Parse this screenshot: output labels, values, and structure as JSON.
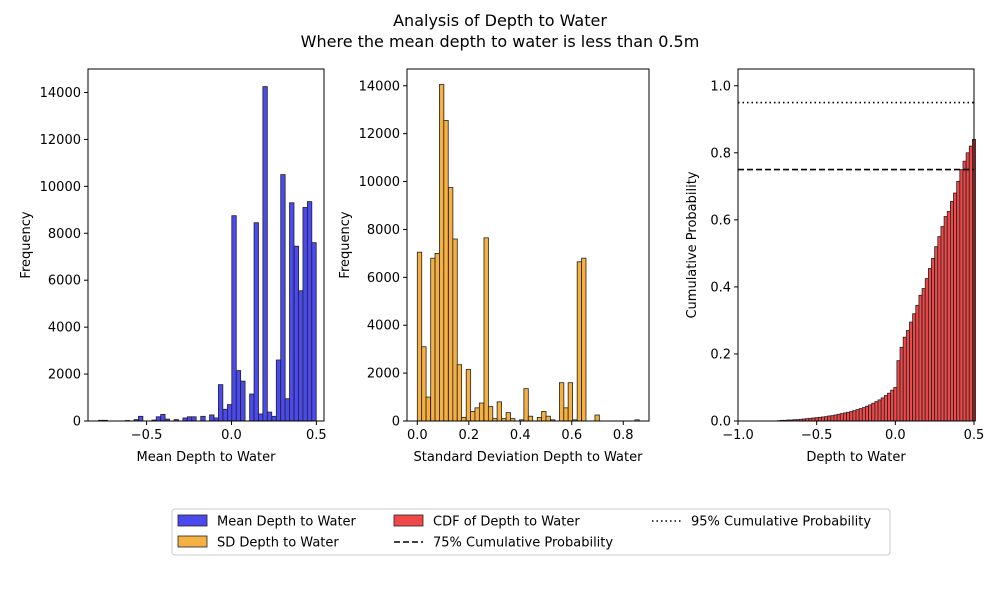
{
  "title": "Analysis of Depth to Water",
  "subtitle": "Where the mean depth to water is less than 0.5m",
  "colors": {
    "mean": "#4a4af0",
    "sd": "#f5b041",
    "cdf": "#f04848",
    "edge": "#222222"
  },
  "chart_data": [
    {
      "type": "bar",
      "name": "Mean Depth to Water histogram",
      "xlabel": "Mean Depth to Water",
      "ylabel": "Frequency",
      "xlim": [
        -0.845,
        0.545
      ],
      "ylim": [
        0,
        15000
      ],
      "xticks": [
        -0.5,
        0.0,
        0.5
      ],
      "xtick_labels": [
        "−0.5",
        "0.0",
        "0.5"
      ],
      "yticks": [
        0,
        2000,
        4000,
        6000,
        8000,
        10000,
        12000,
        14000
      ],
      "ytick_labels": [
        "0",
        "2000",
        "4000",
        "6000",
        "8000",
        "10000",
        "12000",
        "14000"
      ],
      "bin_width": 0.0262,
      "bins": [
        [
          -0.783,
          30
        ],
        [
          -0.757,
          30
        ],
        [
          -0.626,
          20
        ],
        [
          -0.574,
          60
        ],
        [
          -0.548,
          200
        ],
        [
          -0.469,
          40
        ],
        [
          -0.443,
          180
        ],
        [
          -0.417,
          280
        ],
        [
          -0.391,
          80
        ],
        [
          -0.338,
          60
        ],
        [
          -0.286,
          130
        ],
        [
          -0.26,
          180
        ],
        [
          -0.234,
          180
        ],
        [
          -0.181,
          200
        ],
        [
          -0.129,
          260
        ],
        [
          -0.103,
          130
        ],
        [
          -0.077,
          1550
        ],
        [
          -0.05,
          500
        ],
        [
          -0.024,
          700
        ],
        [
          0.002,
          8750
        ],
        [
          0.028,
          2150
        ],
        [
          0.054,
          1700
        ],
        [
          0.107,
          1150
        ],
        [
          0.133,
          8450
        ],
        [
          0.159,
          300
        ],
        [
          0.185,
          14250
        ],
        [
          0.211,
          380
        ],
        [
          0.238,
          200
        ],
        [
          0.264,
          2600
        ],
        [
          0.29,
          10500
        ],
        [
          0.316,
          950
        ],
        [
          0.342,
          9300
        ],
        [
          0.369,
          7450
        ],
        [
          0.395,
          5550
        ],
        [
          0.421,
          9100
        ],
        [
          0.447,
          9350
        ],
        [
          0.473,
          7600
        ]
      ],
      "series": [
        {
          "name": "Mean Depth to Water"
        }
      ]
    },
    {
      "type": "bar",
      "name": "SD Depth to Water histogram",
      "xlabel": "Standard Deviation Depth to Water",
      "ylabel": "Frequency",
      "xlim": [
        -0.04,
        0.9
      ],
      "ylim": [
        0,
        14700
      ],
      "xticks": [
        0.0,
        0.2,
        0.4,
        0.6,
        0.8
      ],
      "xtick_labels": [
        "0.0",
        "0.2",
        "0.4",
        "0.6",
        "0.8"
      ],
      "yticks": [
        0,
        2000,
        4000,
        6000,
        8000,
        10000,
        12000,
        14000
      ],
      "ytick_labels": [
        "0",
        "2000",
        "4000",
        "6000",
        "8000",
        "10000",
        "12000",
        "14000"
      ],
      "bin_width": 0.0172,
      "bins": [
        [
          0.0,
          7050
        ],
        [
          0.017,
          3100
        ],
        [
          0.034,
          1000
        ],
        [
          0.052,
          6800
        ],
        [
          0.069,
          7000
        ],
        [
          0.086,
          14050
        ],
        [
          0.103,
          12550
        ],
        [
          0.121,
          9750
        ],
        [
          0.138,
          7600
        ],
        [
          0.155,
          2350
        ],
        [
          0.172,
          150
        ],
        [
          0.19,
          2150
        ],
        [
          0.207,
          400
        ],
        [
          0.224,
          550
        ],
        [
          0.241,
          750
        ],
        [
          0.259,
          7650
        ],
        [
          0.276,
          600
        ],
        [
          0.293,
          100
        ],
        [
          0.31,
          800
        ],
        [
          0.328,
          100
        ],
        [
          0.345,
          350
        ],
        [
          0.362,
          100
        ],
        [
          0.397,
          50
        ],
        [
          0.414,
          1350
        ],
        [
          0.431,
          200
        ],
        [
          0.466,
          150
        ],
        [
          0.483,
          400
        ],
        [
          0.5,
          200
        ],
        [
          0.517,
          50
        ],
        [
          0.552,
          1600
        ],
        [
          0.569,
          550
        ],
        [
          0.586,
          1600
        ],
        [
          0.603,
          50
        ],
        [
          0.621,
          6650
        ],
        [
          0.638,
          6800
        ],
        [
          0.69,
          250
        ],
        [
          0.845,
          50
        ]
      ],
      "series": [
        {
          "name": "SD Depth to Water"
        }
      ]
    },
    {
      "type": "bar",
      "name": "CDF of Depth to Water",
      "xlabel": "Depth to Water",
      "ylabel": "Cumulative Probability",
      "xlim": [
        -1.0,
        0.5
      ],
      "ylim": [
        0,
        1.05
      ],
      "xticks": [
        -1.0,
        -0.5,
        0.0,
        0.5
      ],
      "xtick_labels": [
        "−1.0",
        "−0.5",
        "0.0",
        "0.5"
      ],
      "yticks": [
        0,
        0.2,
        0.4,
        0.6,
        0.8,
        1.0
      ],
      "ytick_labels": [
        "0.0",
        "0.2",
        "0.4",
        "0.6",
        "0.8",
        "1.0"
      ],
      "bin_width": 0.0199,
      "bins": [
        [
          -0.75,
          0.001
        ],
        [
          -0.73,
          0.002
        ],
        [
          -0.71,
          0.002
        ],
        [
          -0.69,
          0.003
        ],
        [
          -0.67,
          0.003
        ],
        [
          -0.65,
          0.004
        ],
        [
          -0.63,
          0.004
        ],
        [
          -0.61,
          0.005
        ],
        [
          -0.59,
          0.006
        ],
        [
          -0.57,
          0.007
        ],
        [
          -0.55,
          0.008
        ],
        [
          -0.53,
          0.009
        ],
        [
          -0.51,
          0.01
        ],
        [
          -0.49,
          0.011
        ],
        [
          -0.47,
          0.012
        ],
        [
          -0.45,
          0.013
        ],
        [
          -0.43,
          0.015
        ],
        [
          -0.41,
          0.016
        ],
        [
          -0.39,
          0.018
        ],
        [
          -0.37,
          0.02
        ],
        [
          -0.35,
          0.022
        ],
        [
          -0.33,
          0.024
        ],
        [
          -0.31,
          0.026
        ],
        [
          -0.29,
          0.028
        ],
        [
          -0.27,
          0.031
        ],
        [
          -0.25,
          0.034
        ],
        [
          -0.23,
          0.037
        ],
        [
          -0.21,
          0.04
        ],
        [
          -0.19,
          0.044
        ],
        [
          -0.17,
          0.048
        ],
        [
          -0.15,
          0.053
        ],
        [
          -0.13,
          0.058
        ],
        [
          -0.11,
          0.063
        ],
        [
          -0.09,
          0.069
        ],
        [
          -0.07,
          0.076
        ],
        [
          -0.05,
          0.083
        ],
        [
          -0.03,
          0.092
        ],
        [
          -0.01,
          0.1
        ],
        [
          0.01,
          0.18
        ],
        [
          0.03,
          0.22
        ],
        [
          0.05,
          0.25
        ],
        [
          0.07,
          0.27
        ],
        [
          0.09,
          0.295
        ],
        [
          0.11,
          0.32
        ],
        [
          0.13,
          0.345
        ],
        [
          0.15,
          0.375
        ],
        [
          0.17,
          0.395
        ],
        [
          0.19,
          0.425
        ],
        [
          0.21,
          0.455
        ],
        [
          0.23,
          0.485
        ],
        [
          0.25,
          0.52
        ],
        [
          0.27,
          0.55
        ],
        [
          0.29,
          0.58
        ],
        [
          0.31,
          0.61
        ],
        [
          0.33,
          0.625
        ],
        [
          0.35,
          0.655
        ],
        [
          0.37,
          0.68
        ],
        [
          0.39,
          0.715
        ],
        [
          0.41,
          0.75
        ],
        [
          0.43,
          0.775
        ],
        [
          0.45,
          0.8
        ],
        [
          0.47,
          0.82
        ],
        [
          0.49,
          0.84
        ]
      ],
      "hlines": [
        {
          "name": "75% Cumulative Probability",
          "y": 0.75,
          "style": "dashed"
        },
        {
          "name": "95% Cumulative Probability",
          "y": 0.95,
          "style": "dotted"
        }
      ],
      "series": [
        {
          "name": "CDF of Depth to Water"
        }
      ]
    }
  ],
  "legend": {
    "placement": "bottom-center",
    "entries": [
      {
        "label": "Mean Depth to Water",
        "kind": "patch",
        "color": "#4a4af0"
      },
      {
        "label": "SD Depth to Water",
        "kind": "patch",
        "color": "#f5b041"
      },
      {
        "label": "CDF of Depth to Water",
        "kind": "patch",
        "color": "#f04848"
      },
      {
        "label": "75% Cumulative Probability",
        "kind": "dashed"
      },
      {
        "label": "95% Cumulative Probability",
        "kind": "dotted"
      }
    ]
  }
}
